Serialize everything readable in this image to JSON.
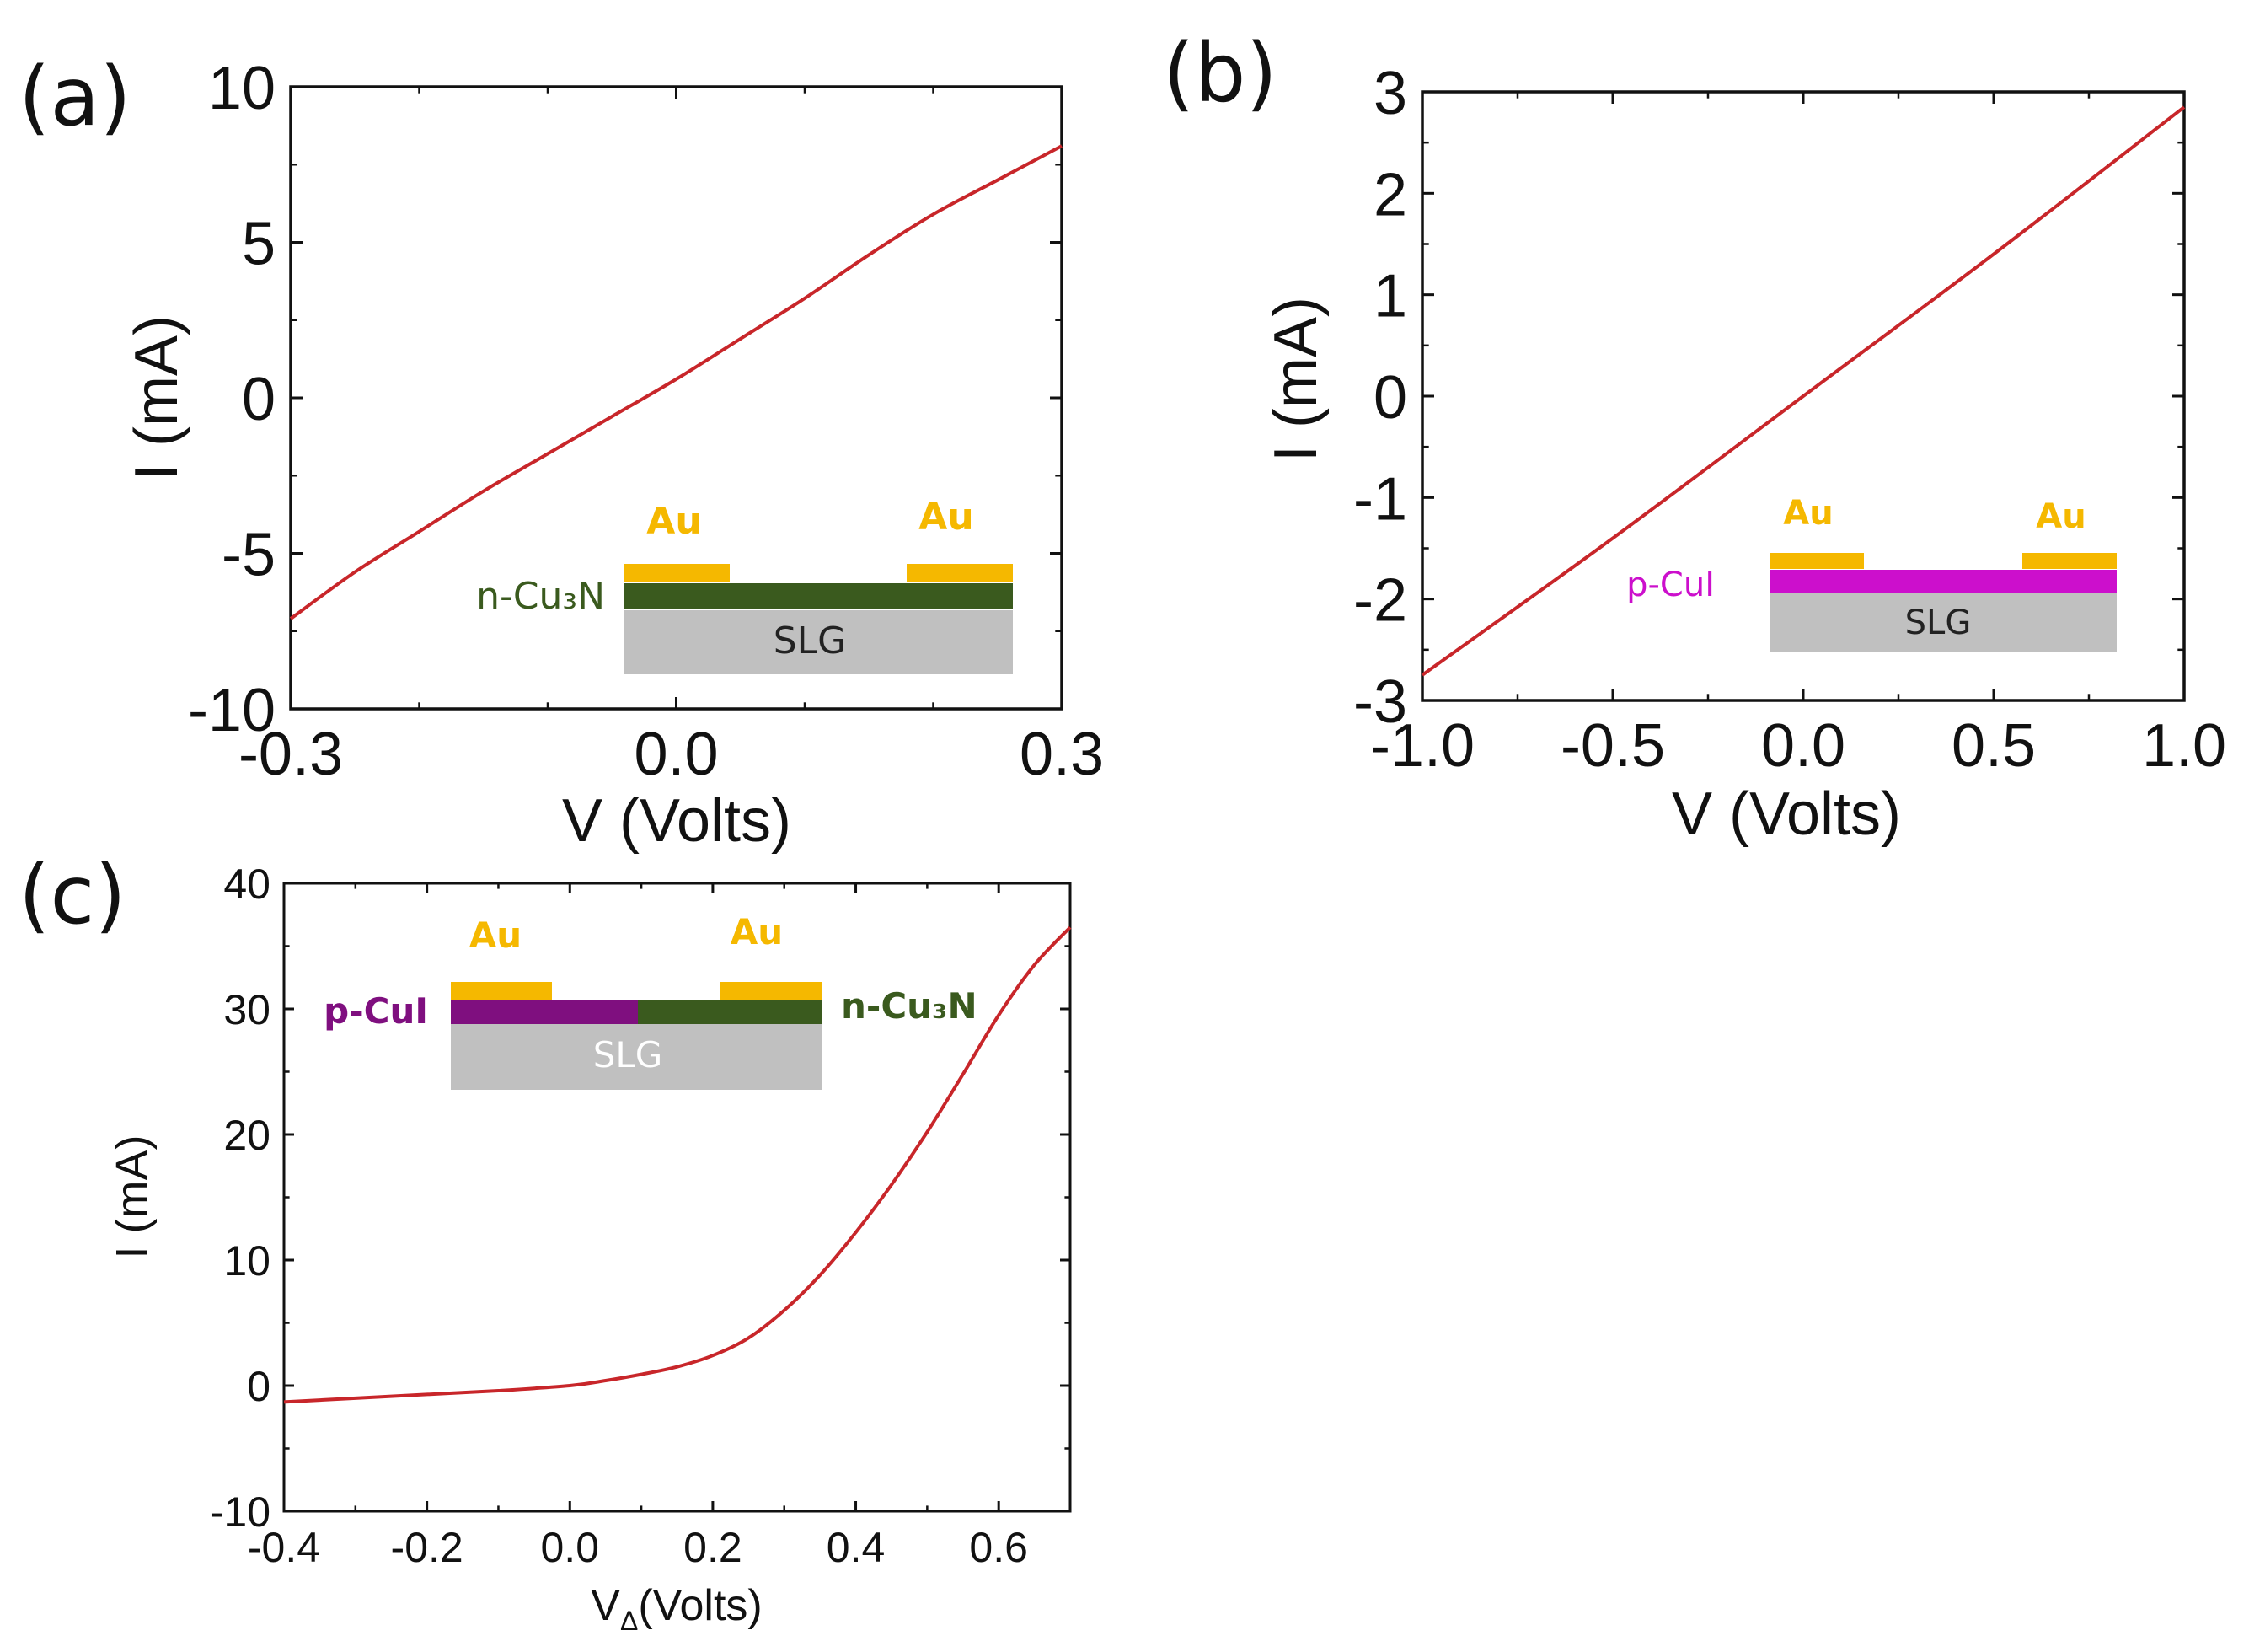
{
  "figure": {
    "colors": {
      "curve": "#c8262a",
      "axis": "#111111",
      "au": "#f5b800",
      "cu3n": "#3a5a1e",
      "cui_b": "#cc0fcc",
      "cui_c": "#7f0f7f",
      "slg": "#c0c0c0"
    }
  },
  "chart_data": [
    {
      "type": "line",
      "panel_label": "(a)",
      "xlabel": "V (Volts)",
      "ylabel": "I (mA)",
      "xlim": [
        -0.3,
        0.3
      ],
      "ylim": [
        -10,
        10
      ],
      "xticks": [
        "-0.3",
        "0.0",
        "0.3"
      ],
      "xtick_values": [
        -0.3,
        0.0,
        0.3
      ],
      "yticks": [
        "-10",
        "-5",
        "0",
        "5",
        "10"
      ],
      "ytick_values": [
        -10,
        -5,
        0,
        5,
        10
      ],
      "series": [
        {
          "name": "I-V",
          "x": [
            -0.3,
            -0.25,
            -0.2,
            -0.15,
            -0.1,
            -0.05,
            0.0,
            0.05,
            0.1,
            0.15,
            0.2,
            0.25,
            0.3
          ],
          "y": [
            -7.1,
            -5.6,
            -4.3,
            -3.0,
            -1.8,
            -0.6,
            0.6,
            1.9,
            3.2,
            4.6,
            5.9,
            7.0,
            8.1
          ]
        }
      ],
      "inset": {
        "labels": {
          "au_left": "Au",
          "au_right": "Au",
          "layer": "n-Cu₃N",
          "substrate": "SLG"
        }
      }
    },
    {
      "type": "line",
      "panel_label": "(b)",
      "xlabel": "V (Volts)",
      "ylabel": "I (mA)",
      "xlim": [
        -1.0,
        1.0
      ],
      "ylim": [
        -3,
        3
      ],
      "xticks": [
        "-1.0",
        "-0.5",
        "0.0",
        "0.5",
        "1.0"
      ],
      "xtick_values": [
        -1.0,
        -0.5,
        0.0,
        0.5,
        1.0
      ],
      "yticks": [
        "-3",
        "-2",
        "-1",
        "0",
        "1",
        "2",
        "3"
      ],
      "ytick_values": [
        -3,
        -2,
        -1,
        0,
        1,
        2,
        3
      ],
      "series": [
        {
          "name": "I-V",
          "x": [
            -1.0,
            -0.5,
            0.0,
            0.5,
            1.0
          ],
          "y": [
            -2.75,
            -1.4,
            0.0,
            1.4,
            2.85
          ]
        }
      ],
      "inset": {
        "labels": {
          "au_left": "Au",
          "au_right": "Au",
          "layer": "p-CuI",
          "substrate": "SLG"
        }
      }
    },
    {
      "type": "line",
      "panel_label": "(c)",
      "xlabel_main": "V",
      "xlabel_sub": "Δ",
      "xlabel_rest": "(Volts)",
      "ylabel": "I (mA)",
      "xlim": [
        -0.4,
        0.7
      ],
      "ylim": [
        -10,
        40
      ],
      "xticks": [
        "-0.4",
        "-0.2",
        "0.0",
        "0.2",
        "0.4",
        "0.6"
      ],
      "xtick_values": [
        -0.4,
        -0.2,
        0.0,
        0.2,
        0.4,
        0.6
      ],
      "yticks": [
        "-10",
        "0",
        "10",
        "20",
        "30",
        "40"
      ],
      "ytick_values": [
        -10,
        0,
        10,
        20,
        30,
        40
      ],
      "series": [
        {
          "name": "I-V",
          "x": [
            -0.4,
            -0.3,
            -0.2,
            -0.1,
            0.0,
            0.05,
            0.1,
            0.15,
            0.2,
            0.25,
            0.3,
            0.35,
            0.4,
            0.45,
            0.5,
            0.55,
            0.6,
            0.65,
            0.7
          ],
          "y": [
            -1.3,
            -1.0,
            -0.7,
            -0.4,
            0.0,
            0.4,
            0.9,
            1.5,
            2.4,
            3.8,
            6.0,
            8.8,
            12.2,
            16.0,
            20.2,
            24.8,
            29.5,
            33.5,
            36.5
          ]
        }
      ],
      "inset": {
        "labels": {
          "au_left": "Au",
          "au_right": "Au",
          "layer_left": "p-CuI",
          "layer_right": "n-Cu₃N",
          "substrate": "SLG"
        }
      }
    }
  ]
}
